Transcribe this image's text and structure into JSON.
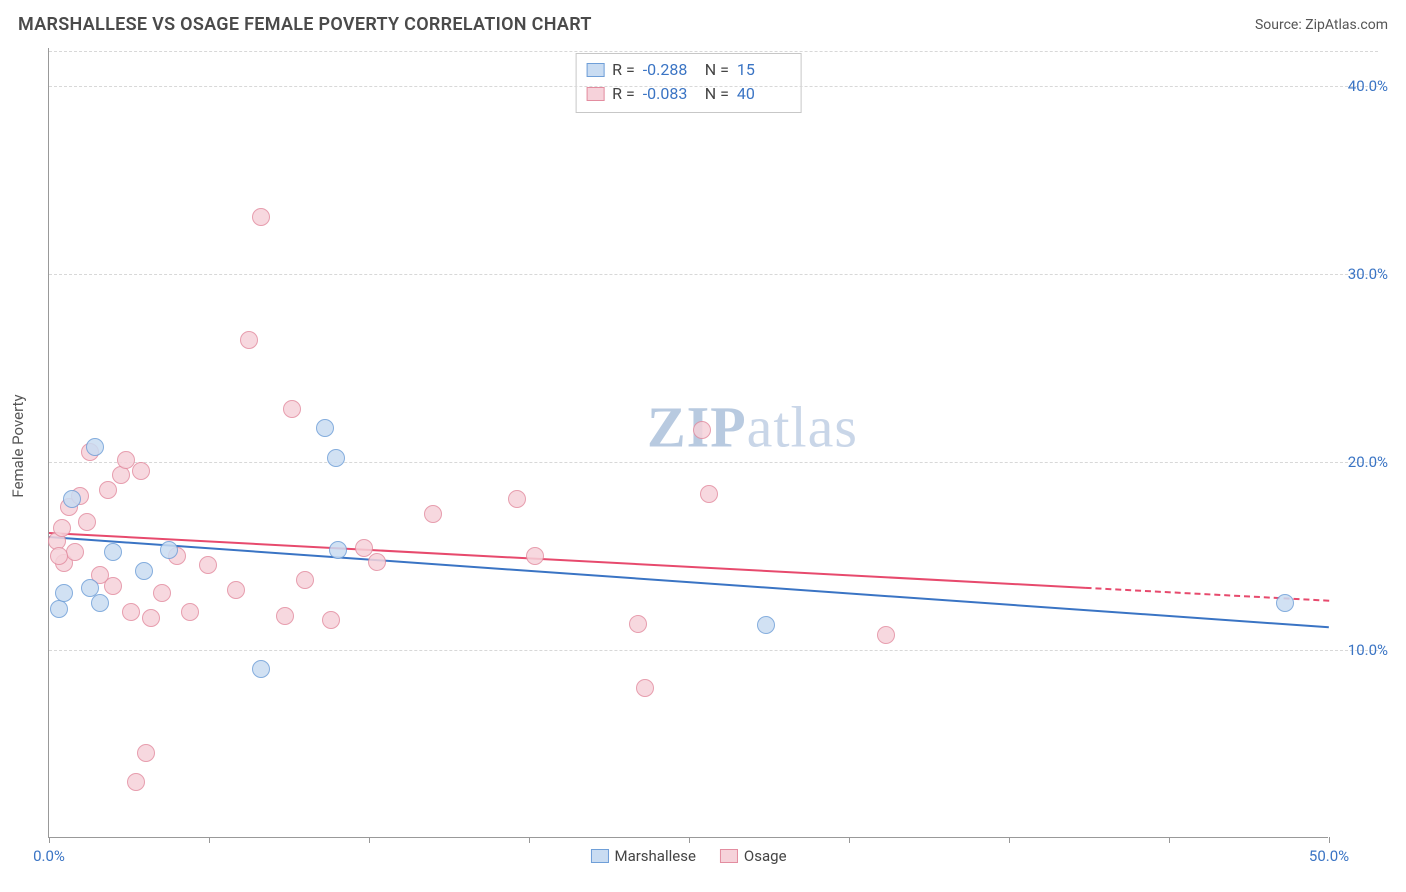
{
  "title": "MARSHALLESE VS OSAGE FEMALE POVERTY CORRELATION CHART",
  "source_label": "Source: ZipAtlas.com",
  "ylabel": "Female Poverty",
  "watermark_a": "ZIP",
  "watermark_b": "atlas",
  "chart": {
    "type": "scatter",
    "background_color": "#ffffff",
    "grid_color": "#d8d8d8",
    "axis_color": "#999999",
    "text_color": "#555555",
    "value_color": "#3a74c4",
    "title_fontsize": 18,
    "label_fontsize": 15,
    "xlim": [
      0,
      50
    ],
    "ylim": [
      0,
      42
    ],
    "yticks": [
      10,
      20,
      30,
      40
    ],
    "ytick_labels": [
      "10.0%",
      "20.0%",
      "30.0%",
      "40.0%"
    ],
    "xtick_positions": [
      0,
      6.25,
      12.5,
      18.75,
      25,
      31.25,
      37.5,
      43.75,
      50
    ],
    "xtick_labels_shown": {
      "0": "0.0%",
      "50": "50.0%"
    },
    "point_radius": 9,
    "series": [
      {
        "name": "Marshallese",
        "fill": "#c9dcf2",
        "stroke": "#6f9fd8",
        "R": "-0.288",
        "N": "15",
        "trend": {
          "color": "#3a74c4",
          "y_at_x0": 16.0,
          "y_at_x50": 11.2,
          "solid_until_x": 50
        },
        "points": [
          [
            0.4,
            12.2
          ],
          [
            0.6,
            13.0
          ],
          [
            0.9,
            18.0
          ],
          [
            1.6,
            13.3
          ],
          [
            1.8,
            20.8
          ],
          [
            2.0,
            12.5
          ],
          [
            2.5,
            15.2
          ],
          [
            3.7,
            14.2
          ],
          [
            4.7,
            15.3
          ],
          [
            8.3,
            9.0
          ],
          [
            10.8,
            21.8
          ],
          [
            11.2,
            20.2
          ],
          [
            11.3,
            15.3
          ],
          [
            28.0,
            11.3
          ],
          [
            48.3,
            12.5
          ]
        ]
      },
      {
        "name": "Osage",
        "fill": "#f6d2da",
        "stroke": "#e38da0",
        "R": "-0.083",
        "N": "40",
        "trend": {
          "color": "#e74a6d",
          "y_at_x0": 16.2,
          "y_at_x50": 12.6,
          "solid_until_x": 40.5
        },
        "points": [
          [
            0.3,
            15.8
          ],
          [
            0.5,
            16.5
          ],
          [
            0.6,
            14.6
          ],
          [
            0.8,
            17.6
          ],
          [
            1.0,
            15.2
          ],
          [
            1.2,
            18.2
          ],
          [
            1.5,
            16.8
          ],
          [
            1.6,
            20.5
          ],
          [
            2.0,
            14.0
          ],
          [
            2.3,
            18.5
          ],
          [
            2.5,
            13.4
          ],
          [
            2.8,
            19.3
          ],
          [
            3.0,
            20.1
          ],
          [
            3.2,
            12.0
          ],
          [
            3.4,
            3.0
          ],
          [
            3.6,
            19.5
          ],
          [
            3.8,
            4.5
          ],
          [
            4.0,
            11.7
          ],
          [
            4.4,
            13.0
          ],
          [
            5.0,
            15.0
          ],
          [
            5.5,
            12.0
          ],
          [
            6.2,
            14.5
          ],
          [
            7.3,
            13.2
          ],
          [
            7.8,
            26.5
          ],
          [
            8.3,
            33.0
          ],
          [
            9.2,
            11.8
          ],
          [
            9.5,
            22.8
          ],
          [
            10.0,
            13.7
          ],
          [
            11.0,
            11.6
          ],
          [
            12.3,
            15.4
          ],
          [
            12.8,
            14.7
          ],
          [
            15.0,
            17.2
          ],
          [
            18.3,
            18.0
          ],
          [
            19.0,
            15.0
          ],
          [
            23.0,
            11.4
          ],
          [
            23.3,
            8.0
          ],
          [
            25.5,
            21.7
          ],
          [
            25.8,
            18.3
          ],
          [
            32.7,
            10.8
          ],
          [
            0.4,
            15.0
          ]
        ]
      }
    ],
    "legend_bottom": [
      "Marshallese",
      "Osage"
    ]
  }
}
